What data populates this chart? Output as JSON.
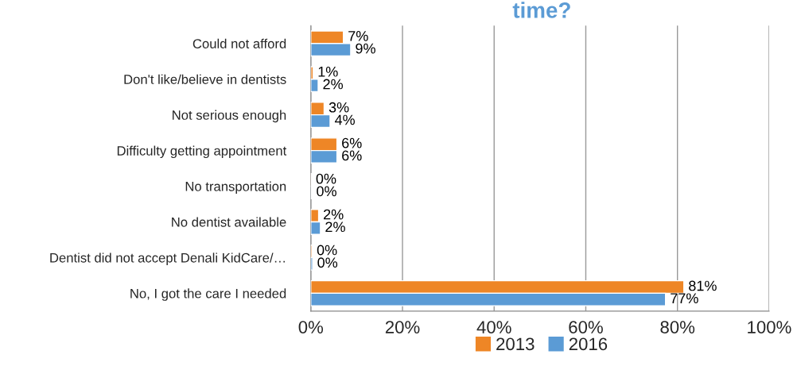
{
  "chart_data": {
    "type": "bar",
    "orientation": "horizontal",
    "title": "time?",
    "categories": [
      "Could not afford",
      "Don't like/believe in dentists",
      "Not serious enough",
      "Difficulty getting appointment",
      "No transportation",
      "No dentist available",
      "Dentist did not accept Denali KidCare/…",
      "No, I got the care I needed"
    ],
    "series": [
      {
        "name": "2013",
        "color": "#ee8626",
        "values": [
          7.1,
          0.5,
          2.9,
          5.7,
          0.1,
          1.7,
          0.3,
          81.4
        ],
        "value_labels": [
          "7%",
          "1%",
          "3%",
          "6%",
          "0%",
          "2%",
          "0%",
          "81%"
        ]
      },
      {
        "name": "2016",
        "color": "#5b9bd5",
        "values": [
          8.7,
          1.6,
          4.2,
          5.7,
          0.2,
          2.1,
          0.4,
          77.4
        ],
        "value_labels": [
          "9%",
          "2%",
          "4%",
          "6%",
          "0%",
          "2%",
          "0%",
          "77%"
        ]
      }
    ],
    "xlim": [
      0,
      100
    ],
    "xticks": [
      {
        "value": 0,
        "label": "0%"
      },
      {
        "value": 20,
        "label": "20%"
      },
      {
        "value": 40,
        "label": "40%"
      },
      {
        "value": 60,
        "label": "60%"
      },
      {
        "value": 80,
        "label": "80%"
      },
      {
        "value": 100,
        "label": "100%"
      }
    ],
    "grid": "x",
    "legend": "bottom"
  }
}
